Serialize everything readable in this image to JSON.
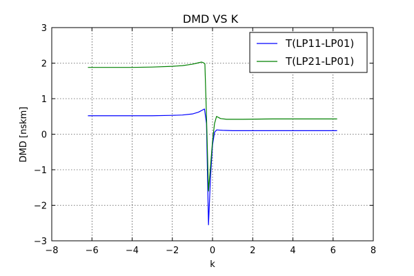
{
  "chart_data": {
    "type": "line",
    "title": "DMD VS K",
    "xlabel": "k",
    "ylabel": "DMD [nskm]",
    "xlim": [
      -8,
      8
    ],
    "ylim": [
      -3,
      3
    ],
    "xticks": [
      -8,
      -6,
      -4,
      -2,
      0,
      2,
      4,
      6,
      8
    ],
    "yticks": [
      -3,
      -2,
      -1,
      0,
      1,
      2,
      3
    ],
    "xtick_labels": [
      "−8",
      "−6",
      "−4",
      "−2",
      "0",
      "2",
      "4",
      "6",
      "8"
    ],
    "ytick_labels": [
      "−3",
      "−2",
      "−1",
      "0",
      "1",
      "2",
      "3"
    ],
    "grid": true,
    "legend_position": "top-right",
    "series": [
      {
        "name": "T(LP11-LP01)",
        "color": "#0000ff",
        "points": [
          [
            -6.2,
            0.52
          ],
          [
            -5.0,
            0.52
          ],
          [
            -4.0,
            0.52
          ],
          [
            -3.0,
            0.52
          ],
          [
            -2.0,
            0.53
          ],
          [
            -1.5,
            0.54
          ],
          [
            -1.0,
            0.57
          ],
          [
            -0.7,
            0.62
          ],
          [
            -0.5,
            0.68
          ],
          [
            -0.4,
            0.71
          ],
          [
            -0.3,
            0.3
          ],
          [
            -0.2,
            -2.55
          ],
          [
            -0.1,
            -1.2
          ],
          [
            0.0,
            -0.3
          ],
          [
            0.1,
            0.05
          ],
          [
            0.2,
            0.12
          ],
          [
            0.5,
            0.11
          ],
          [
            1.0,
            0.1
          ],
          [
            2.0,
            0.1
          ],
          [
            4.0,
            0.1
          ],
          [
            6.2,
            0.1
          ]
        ]
      },
      {
        "name": "T(LP21-LP01)",
        "color": "#008000",
        "points": [
          [
            -6.2,
            1.88
          ],
          [
            -5.0,
            1.88
          ],
          [
            -4.0,
            1.88
          ],
          [
            -3.0,
            1.89
          ],
          [
            -2.0,
            1.91
          ],
          [
            -1.5,
            1.93
          ],
          [
            -1.0,
            1.97
          ],
          [
            -0.7,
            2.01
          ],
          [
            -0.55,
            2.03
          ],
          [
            -0.45,
            2.01
          ],
          [
            -0.38,
            1.98
          ],
          [
            -0.3,
            0.5
          ],
          [
            -0.2,
            -1.6
          ],
          [
            -0.1,
            -0.9
          ],
          [
            0.0,
            -0.2
          ],
          [
            0.1,
            0.3
          ],
          [
            0.2,
            0.5
          ],
          [
            0.4,
            0.44
          ],
          [
            0.7,
            0.42
          ],
          [
            1.5,
            0.42
          ],
          [
            3.0,
            0.43
          ],
          [
            6.2,
            0.43
          ]
        ]
      }
    ]
  }
}
